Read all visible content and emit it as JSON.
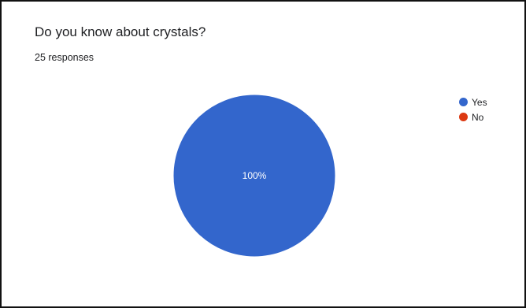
{
  "header": {
    "title": "Do you know about crystals?",
    "responses": "25 responses"
  },
  "chart_data": {
    "type": "pie",
    "title": "Do you know about crystals?",
    "categories": [
      "Yes",
      "No"
    ],
    "values": [
      100,
      0
    ],
    "colors": [
      "#3366cc",
      "#dc3912"
    ],
    "data_labels": [
      "100%"
    ],
    "legend_position": "right"
  }
}
